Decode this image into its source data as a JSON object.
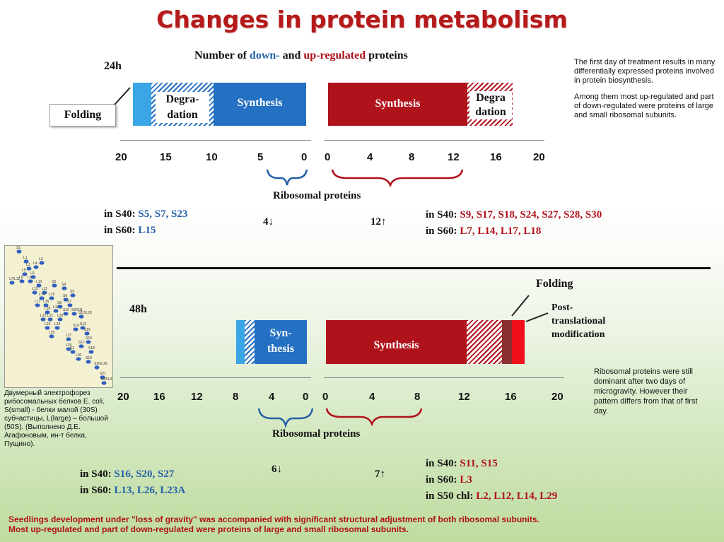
{
  "title": "Changes in protein metabolism",
  "subtitle": {
    "part1": "Number of ",
    "down": "down-",
    "mid": " and ",
    "up": "up-regulated",
    "end": " proteins"
  },
  "day1": {
    "label": "24h",
    "folding": "Folding",
    "degradation_left_1": "Degra-",
    "degradation_left_2": "dation",
    "synthesis_left": "Synthesis",
    "synthesis_right": "Synthesis",
    "degradation_right_1": "Degra",
    "degradation_right_2": "dation",
    "axis_left": [
      "20",
      "15",
      "10",
      "5",
      "0"
    ],
    "axis_right": [
      "0",
      "4",
      "8",
      "12",
      "16",
      "20"
    ],
    "ribosomal": "Ribosomal proteins",
    "down_s40_label": "in S40: ",
    "down_s40_list": "S5, S7, S23",
    "down_s60_label": "in S60: ",
    "down_s60_list": "L15",
    "down_count": "4↓",
    "up_count": "12↑",
    "up_s40_label": "in S40: ",
    "up_s40_list": "S9, S17, S18, S24, S27, S28, S30",
    "up_s60_label": "in S60: ",
    "up_s60_list": "L7, L14, L17, L18",
    "note_1": "The first day of treatment results in many differentially expressed proteins involved in protein biosynthesis.",
    "note_2": "Among them most up-regulated and part of down-regulated were proteins of large and small ribosomal subunits."
  },
  "day2": {
    "label": "48h",
    "folding": "Folding",
    "ptm_1": "Post-",
    "ptm_2": "translational",
    "ptm_3": "modification",
    "synthesis_left_1": "Syn-",
    "synthesis_left_2": "thesis",
    "synthesis_right": "Synthesis",
    "axis_left": [
      "20",
      "16",
      "12",
      "8",
      "4",
      "0"
    ],
    "axis_right": [
      "0",
      "4",
      "8",
      "12",
      "16",
      "20"
    ],
    "ribosomal": "Ribosomal proteins",
    "down_count": "6↓",
    "up_count": "7↑",
    "down_s40_label": "in S40: ",
    "down_s40_list": "S16, S20, S27",
    "down_s60_label": "in S60: ",
    "down_s60_list": "L13, L26, L23A",
    "up_s40_label": "in S40: ",
    "up_s40_list": "S11, S15",
    "up_s60_label": "in S60: ",
    "up_s60_list": "L3",
    "up_s50_label": "in S50 chl: ",
    "up_s50_list": "L2, L12, L14, L29",
    "note": "Ribosomal proteins were still dominant after two days of microgravity. However their pattern differs from that of first day."
  },
  "gel": {
    "spots": [
      "S1",
      "L1",
      "L2",
      "L3",
      "L4",
      "L5",
      "L6",
      "L7/L12",
      "L8",
      "L9",
      "L10",
      "L11",
      "L13",
      "L14",
      "L15",
      "L16",
      "L17",
      "L18",
      "L19",
      "L20",
      "L21",
      "L22",
      "L23",
      "L24",
      "L25",
      "L27",
      "L29",
      "L30",
      "S2",
      "S3",
      "S4",
      "S5",
      "S6",
      "S7",
      "S8",
      "S9/S11",
      "S10",
      "S12/L20",
      "S13",
      "S14",
      "S15",
      "S16",
      "S17",
      "S18",
      "S19",
      "S20/L26",
      "S21",
      "L32/L33"
    ],
    "caption": "Двумерный электрофорез рибосомальных белков E. coli. S(small) - белки малой (30S) субчастицы, L(large) – большой (50S). (Выполнено Д.Е. Агафоновым, ин-т белка, Пущино)."
  },
  "footer_1": "Seedlings development  under \"loss of gravity\" was accompanied with significant structural adjustment of both ribosomal subunits.",
  "footer_2": "Most up-regulated and part of down-regulated were proteins of large and small ribosomal subunits."
}
